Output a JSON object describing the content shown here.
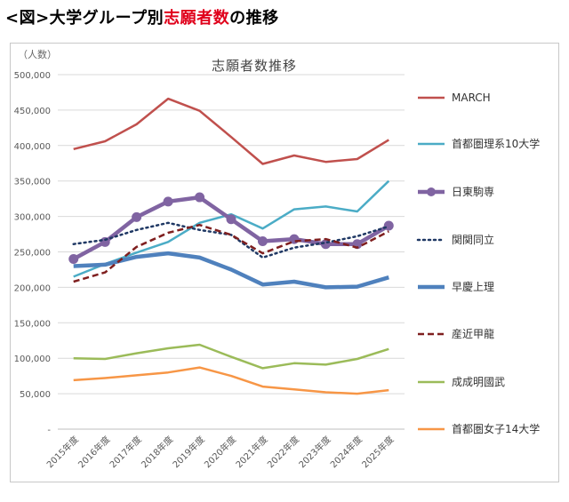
{
  "header": {
    "prefix": "<図>大学グループ別",
    "highlight": "志願者数",
    "suffix": "の推移"
  },
  "colors": {
    "accent": "#e0001b"
  },
  "chart_data": {
    "type": "line",
    "title": "志願者数推移",
    "unit_label": "（人数）",
    "categories": [
      "2015年度",
      "2016年度",
      "2017年度",
      "2018年度",
      "2019年度",
      "2020年度",
      "2021年度",
      "2022年度",
      "2023年度",
      "2024年度",
      "2025年度"
    ],
    "ylim": [
      0,
      500000
    ],
    "y_ticks": [
      0,
      50000,
      100000,
      150000,
      200000,
      250000,
      300000,
      350000,
      400000,
      450000,
      500000
    ],
    "y_tick_labels": [
      "-",
      "50,000",
      "100,000",
      "150,000",
      "200,000",
      "250,000",
      "300,000",
      "350,000",
      "400,000",
      "450,000",
      "500,000"
    ],
    "grid": true,
    "legend_position": "right",
    "series": [
      {
        "name": "MARCH",
        "color": "#c0504d",
        "style": "solid",
        "width": 2.5,
        "marker": false,
        "values": [
          395000,
          406000,
          430000,
          466000,
          449000,
          412000,
          374000,
          386000,
          377000,
          381000,
          408000
        ]
      },
      {
        "name": "首都圏理系10大学",
        "color": "#4bacc6",
        "style": "solid",
        "width": 2.5,
        "marker": false,
        "values": [
          215000,
          233000,
          249000,
          264000,
          291000,
          303000,
          283000,
          310000,
          314000,
          307000,
          350000
        ]
      },
      {
        "name": "日東駒専",
        "color": "#8064a2",
        "style": "solid",
        "width": 4.5,
        "marker": true,
        "values": [
          240000,
          264000,
          299000,
          321000,
          327000,
          296000,
          265000,
          268000,
          261000,
          261000,
          287000
        ]
      },
      {
        "name": "関関同立",
        "color": "#1f3864",
        "style": "dotted",
        "width": 2.5,
        "marker": false,
        "values": [
          261000,
          267000,
          281000,
          291000,
          281000,
          274000,
          242000,
          256000,
          263000,
          272000,
          286000
        ]
      },
      {
        "name": "早慶上理",
        "color": "#4f81bd",
        "style": "solid",
        "width": 4.5,
        "marker": false,
        "values": [
          230000,
          232000,
          243000,
          248000,
          242000,
          225000,
          204000,
          208000,
          200000,
          201000,
          214000
        ]
      },
      {
        "name": "産近甲龍",
        "color": "#7f1f1f",
        "style": "dashed",
        "width": 2.5,
        "marker": false,
        "values": [
          208000,
          221000,
          257000,
          277000,
          288000,
          274000,
          248000,
          265000,
          268000,
          256000,
          279000
        ]
      },
      {
        "name": "成成明國武",
        "color": "#9bbb59",
        "style": "solid",
        "width": 2.5,
        "marker": false,
        "values": [
          100000,
          99000,
          107000,
          114000,
          119000,
          102000,
          86000,
          93000,
          91000,
          99000,
          113000
        ]
      },
      {
        "name": "首都圏女子14大学",
        "color": "#f79646",
        "style": "solid",
        "width": 2.5,
        "marker": false,
        "values": [
          69000,
          72000,
          76000,
          80000,
          87000,
          75000,
          60000,
          56000,
          52000,
          50000,
          55000
        ]
      }
    ]
  }
}
